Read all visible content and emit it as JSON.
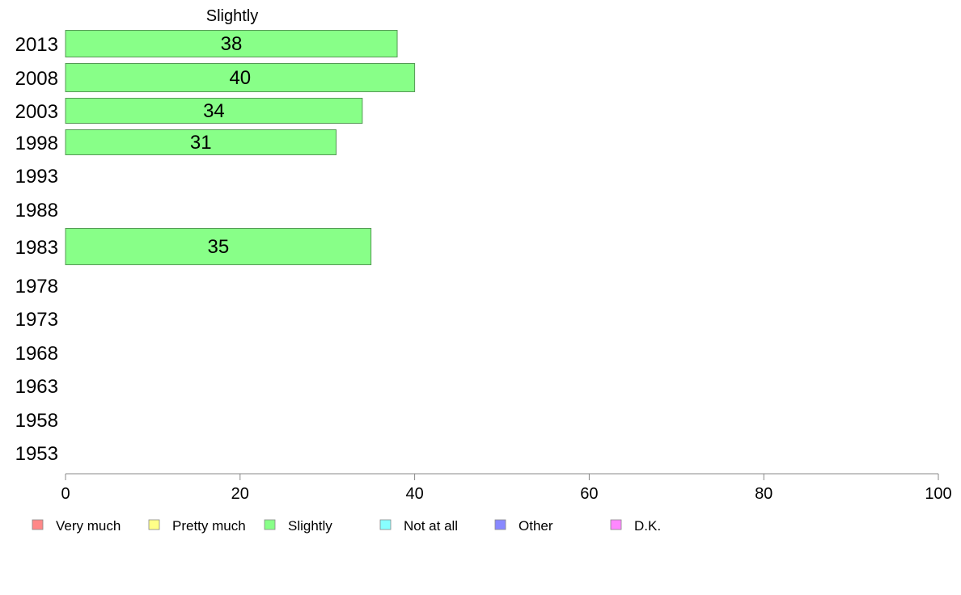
{
  "chart_data": {
    "type": "bar",
    "orientation": "horizontal",
    "title": "Slightly",
    "categories": [
      "2013",
      "2008",
      "2003",
      "1998",
      "1993",
      "1988",
      "1983",
      "1978",
      "1973",
      "1968",
      "1963",
      "1958",
      "1953"
    ],
    "series": [
      {
        "name": "Slightly",
        "values": [
          38,
          40,
          34,
          31,
          null,
          null,
          35,
          null,
          null,
          null,
          null,
          null,
          null
        ],
        "color": "#88ff88"
      }
    ],
    "xlim": [
      0,
      100
    ],
    "xticks": [
      0,
      20,
      40,
      60,
      80,
      100
    ],
    "grid": false,
    "legend": {
      "placement": "bottom",
      "items": [
        {
          "label": "Very much",
          "color": "#ff8888"
        },
        {
          "label": "Pretty much",
          "color": "#ffff88"
        },
        {
          "label": "Slightly",
          "color": "#88ff88"
        },
        {
          "label": "Not at all",
          "color": "#88ffff"
        },
        {
          "label": "Other",
          "color": "#8888ff"
        },
        {
          "label": "D.K.",
          "color": "#ff88ff"
        }
      ]
    },
    "bar_stroke": "#559955",
    "axis_color": "#888888"
  }
}
